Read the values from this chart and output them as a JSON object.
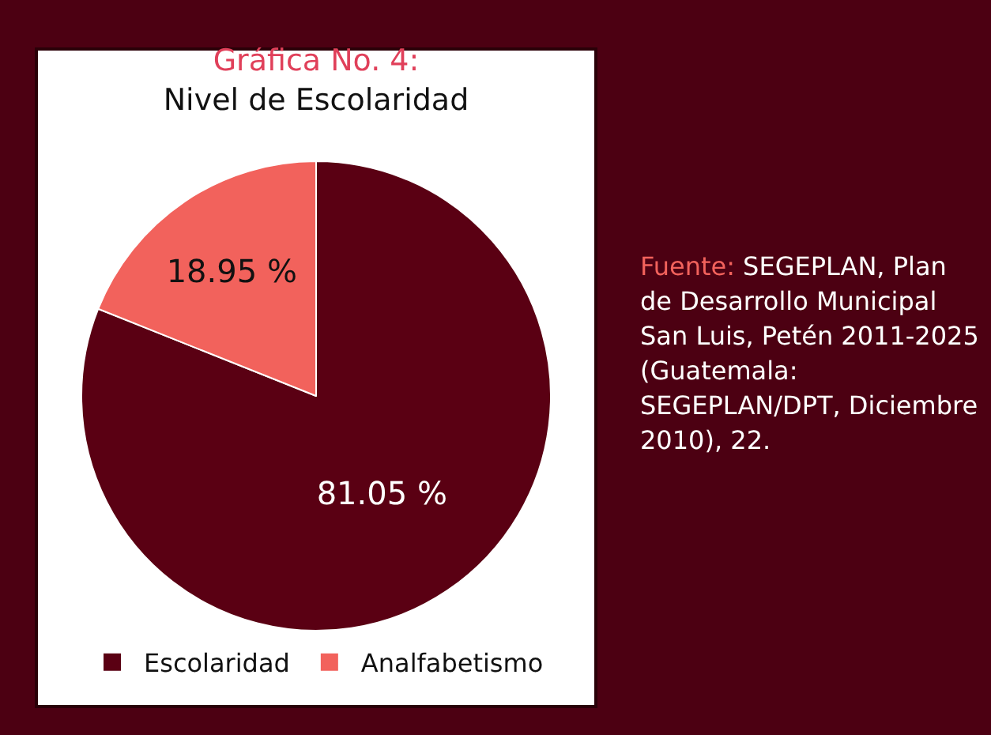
{
  "chart_data": {
    "type": "pie",
    "title": "Gráfica No. 4:",
    "subtitle": "Nivel de Escolaridad",
    "categories": [
      "Escolaridad",
      "Analfabetismo"
    ],
    "values": [
      81.05,
      18.95
    ],
    "value_labels": [
      "81.05 %",
      "18.95 %"
    ],
    "colors": [
      "#5a0013",
      "#f2625c"
    ],
    "legend": "bottom",
    "annotations": [
      "Fuente: SEGEPLAN, Plan de Desarrollo Municipal San Luis, Petén 2011-2025 (Guatemala: SEGEPLAN/DPT, Diciembre 2010), 22."
    ]
  }
}
